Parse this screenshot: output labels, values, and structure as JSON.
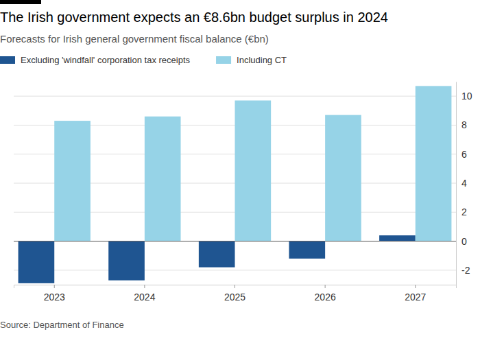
{
  "chart_data": {
    "type": "bar",
    "title": "The Irish government expects an €8.6bn budget surplus in 2024",
    "subtitle": "Forecasts for Irish general government fiscal balance (€bn)",
    "source": "Source: Department of Finance",
    "categories": [
      "2023",
      "2024",
      "2025",
      "2026",
      "2027"
    ],
    "series": [
      {
        "name": "Excluding 'windfall' corporation tax receipts",
        "color": "#1f5591",
        "values": [
          -2.9,
          -2.7,
          -1.8,
          -1.2,
          0.4
        ]
      },
      {
        "name": "Including CT",
        "color": "#96d3e7",
        "values": [
          8.3,
          8.6,
          9.7,
          8.7,
          10.7
        ]
      }
    ],
    "ylim": [
      -3,
      11
    ],
    "yticks": [
      -2,
      0,
      2,
      4,
      6,
      8,
      10
    ],
    "grid": true,
    "legend": "top"
  }
}
